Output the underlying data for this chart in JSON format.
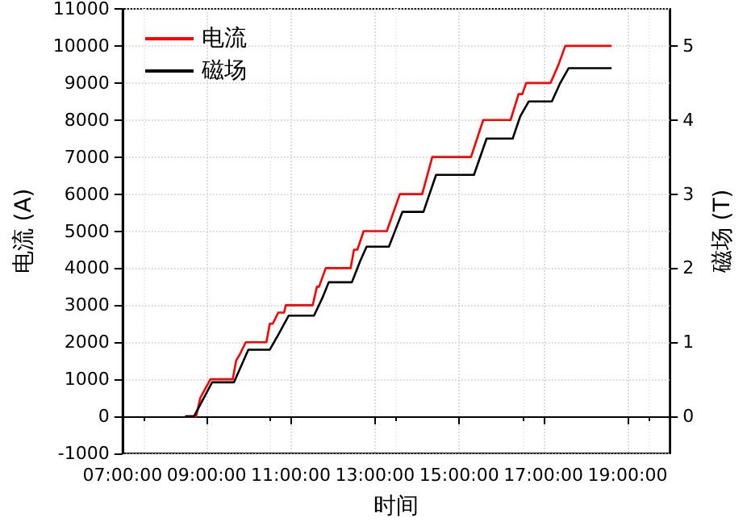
{
  "chart_data": {
    "type": "line",
    "xlabel": "时间",
    "ylabel": "电流 (A)",
    "y2label": "磁场 (T)",
    "xlim": [
      7,
      20
    ],
    "xticks": [
      {
        "value": 7,
        "label": "07:00:00"
      },
      {
        "value": 9,
        "label": "09:00:00"
      },
      {
        "value": 11,
        "label": "11:00:00"
      },
      {
        "value": 13,
        "label": "13:00:00"
      },
      {
        "value": 15,
        "label": "15:00:00"
      },
      {
        "value": 17,
        "label": "17:00:00"
      },
      {
        "value": 19,
        "label": "19:00:00"
      }
    ],
    "ylim": [
      -1000,
      11000
    ],
    "yticks": [
      -1000,
      0,
      1000,
      2000,
      3000,
      4000,
      5000,
      6000,
      7000,
      8000,
      9000,
      10000,
      11000
    ],
    "y2lim": [
      -0.5,
      5.5
    ],
    "y2ticks": [
      0,
      1,
      2,
      3,
      4,
      5
    ],
    "grid": true,
    "legend": "top left",
    "marker": "none",
    "line_style": "solid",
    "series": [
      {
        "name": "电流",
        "color": "#ff0000",
        "x": [
          8.51,
          8.75,
          8.85,
          9.09,
          9.62,
          9.7,
          9.8,
          9.93,
          10.42,
          10.5,
          10.57,
          10.7,
          10.84,
          10.88,
          11.52,
          11.62,
          11.67,
          11.83,
          12.42,
          12.5,
          12.58,
          12.73,
          13.28,
          13.59,
          14.12,
          14.36,
          15.28,
          15.57,
          16.22,
          16.41,
          16.5,
          16.59,
          17.17,
          17.36,
          17.52,
          18.6
        ],
        "values": [
          0,
          0,
          500,
          1000,
          1000,
          1500,
          1700,
          2000,
          2000,
          2500,
          2500,
          2800,
          2800,
          3000,
          3000,
          3500,
          3500,
          4000,
          4000,
          4500,
          4500,
          5000,
          5000,
          6000,
          6000,
          7000,
          7000,
          8000,
          8000,
          8700,
          8700,
          9000,
          9000,
          9500,
          10000,
          10000
        ]
      },
      {
        "name": "磁场",
        "color": "#000000",
        "axis": "y2",
        "x": [
          8.51,
          8.7,
          9.13,
          9.65,
          9.99,
          10.5,
          10.7,
          10.95,
          11.55,
          11.75,
          11.9,
          12.45,
          12.65,
          12.8,
          13.33,
          13.65,
          14.15,
          14.45,
          15.35,
          15.65,
          16.27,
          16.45,
          16.65,
          17.2,
          17.4,
          17.6,
          18.6
        ],
        "values": [
          0,
          0,
          0.46,
          0.46,
          0.9,
          0.9,
          1.1,
          1.36,
          1.36,
          1.6,
          1.81,
          1.81,
          2.1,
          2.29,
          2.29,
          2.76,
          2.76,
          3.26,
          3.26,
          3.75,
          3.75,
          4.05,
          4.25,
          4.25,
          4.5,
          4.7,
          4.7
        ]
      }
    ]
  }
}
